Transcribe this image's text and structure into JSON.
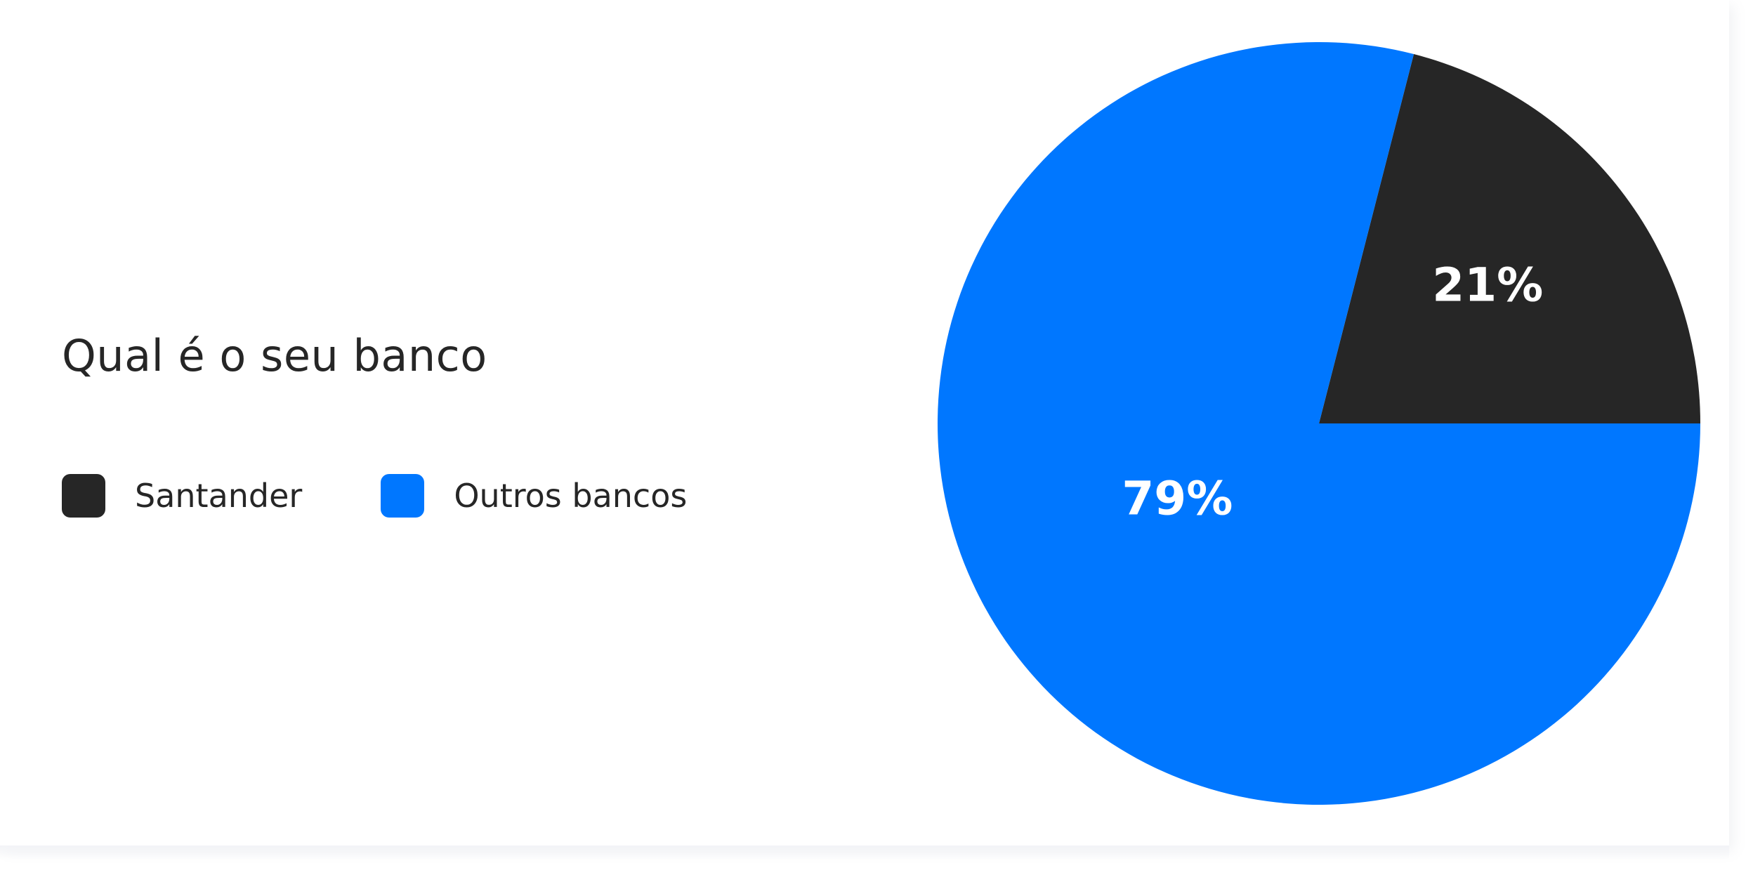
{
  "chart_data": {
    "type": "pie",
    "title": "Qual é o seu banco",
    "categories": [
      "Santander",
      "Outros bancos"
    ],
    "values": [
      21,
      79
    ],
    "labels": [
      "21%",
      "79%"
    ],
    "colors": [
      "#262626",
      "#0077ff"
    ],
    "label_color": "#ffffff",
    "start_angle_deg": 0,
    "direction": "counterclockwise",
    "legend_position": "left"
  }
}
